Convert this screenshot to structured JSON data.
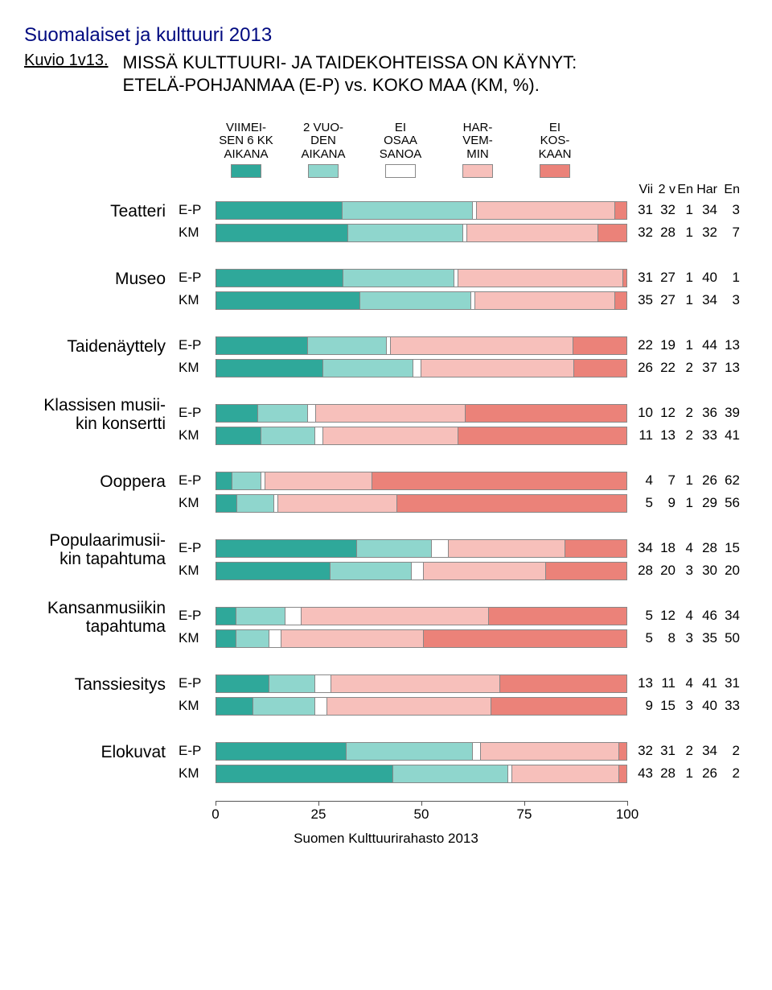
{
  "survey_title": "Suomalaiset ja kulttuuri 2013",
  "kuvio": "Kuvio 1v13.",
  "chart_title": "MISSÄ KULTTUURI- JA TAIDEKOHTEISSA ON KÄYNYT:\nETELÄ-POHJANMAA (E-P) vs. KOKO MAA (KM, %).",
  "footer": "Suomen Kulttuurirahasto 2013",
  "legend": [
    {
      "label": "VIIMEI-\nSEN 6 KK\nAIKANA",
      "color": "#2fa89a"
    },
    {
      "label": "2 VUO-\nDEN\nAIKANA",
      "color": "#8fd6cd"
    },
    {
      "label": "EI\nOSAA\nSANOA",
      "color": "#ffffff"
    },
    {
      "label": "HAR-\nVEM-\nMIN",
      "color": "#f7c0bb"
    },
    {
      "label": "EI\nKOS-\nKAAN",
      "color": "#eb8279"
    }
  ],
  "value_header": [
    "Vii",
    "2 v",
    "En",
    "Har",
    "En"
  ],
  "series_labels": [
    "E-P",
    "KM"
  ],
  "axis": {
    "min": 0,
    "max": 100,
    "ticks": [
      0,
      25,
      50,
      75,
      100
    ]
  },
  "colors": {
    "c1": "#2fa89a",
    "c2": "#8fd6cd",
    "c3": "#ffffff",
    "c4": "#f7c0bb",
    "c5": "#eb8279",
    "border": "#888888",
    "axis": "#555555",
    "title": "#000a80"
  },
  "categories": [
    {
      "label": "Teatteri",
      "rows": [
        {
          "series": "E-P",
          "v": [
            31,
            32,
            1,
            34,
            3
          ]
        },
        {
          "series": "KM",
          "v": [
            32,
            28,
            1,
            32,
            7
          ]
        }
      ]
    },
    {
      "label": "Museo",
      "rows": [
        {
          "series": "E-P",
          "v": [
            31,
            27,
            1,
            40,
            1
          ]
        },
        {
          "series": "KM",
          "v": [
            35,
            27,
            1,
            34,
            3
          ]
        }
      ]
    },
    {
      "label": "Taidenäyttely",
      "rows": [
        {
          "series": "E-P",
          "v": [
            22,
            19,
            1,
            44,
            13
          ]
        },
        {
          "series": "KM",
          "v": [
            26,
            22,
            2,
            37,
            13
          ]
        }
      ]
    },
    {
      "label": "Klassisen musii-\nkin konsertti",
      "rows": [
        {
          "series": "E-P",
          "v": [
            10,
            12,
            2,
            36,
            39
          ]
        },
        {
          "series": "KM",
          "v": [
            11,
            13,
            2,
            33,
            41
          ]
        }
      ]
    },
    {
      "label": "Ooppera",
      "rows": [
        {
          "series": "E-P",
          "v": [
            4,
            7,
            1,
            26,
            62
          ]
        },
        {
          "series": "KM",
          "v": [
            5,
            9,
            1,
            29,
            56
          ]
        }
      ]
    },
    {
      "label": "Populaarimusii-\nkin tapahtuma",
      "rows": [
        {
          "series": "E-P",
          "v": [
            34,
            18,
            4,
            28,
            15
          ]
        },
        {
          "series": "KM",
          "v": [
            28,
            20,
            3,
            30,
            20
          ]
        }
      ]
    },
    {
      "label": "Kansanmusiikin\ntapahtuma",
      "rows": [
        {
          "series": "E-P",
          "v": [
            5,
            12,
            4,
            46,
            34
          ]
        },
        {
          "series": "KM",
          "v": [
            5,
            8,
            3,
            35,
            50
          ]
        }
      ]
    },
    {
      "label": "Tanssiesitys",
      "rows": [
        {
          "series": "E-P",
          "v": [
            13,
            11,
            4,
            41,
            31
          ]
        },
        {
          "series": "KM",
          "v": [
            9,
            15,
            3,
            40,
            33
          ]
        }
      ]
    },
    {
      "label": "Elokuvat",
      "rows": [
        {
          "series": "E-P",
          "v": [
            32,
            31,
            2,
            34,
            2
          ]
        },
        {
          "series": "KM",
          "v": [
            43,
            28,
            1,
            26,
            2
          ]
        }
      ]
    }
  ]
}
